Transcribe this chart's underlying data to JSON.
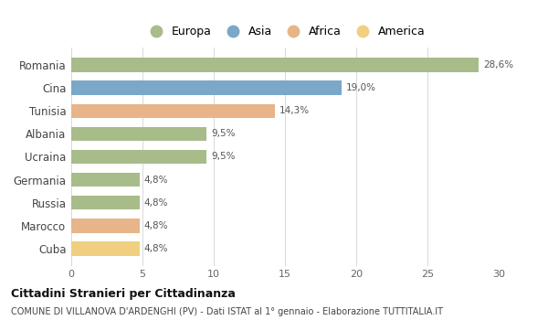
{
  "countries": [
    "Romania",
    "Cina",
    "Tunisia",
    "Albania",
    "Ucraina",
    "Germania",
    "Russia",
    "Marocco",
    "Cuba"
  ],
  "values": [
    28.6,
    19.0,
    14.3,
    9.5,
    9.5,
    4.8,
    4.8,
    4.8,
    4.8
  ],
  "labels": [
    "28,6%",
    "19,0%",
    "14,3%",
    "9,5%",
    "9,5%",
    "4,8%",
    "4,8%",
    "4,8%",
    "4,8%"
  ],
  "colors": [
    "#a8bc8a",
    "#7ba7c9",
    "#e8b48a",
    "#a8bc8a",
    "#a8bc8a",
    "#a8bc8a",
    "#a8bc8a",
    "#e8b48a",
    "#f0d080"
  ],
  "legend_labels": [
    "Europa",
    "Asia",
    "Africa",
    "America"
  ],
  "legend_colors": [
    "#a8bc8a",
    "#7ba7c9",
    "#e8b48a",
    "#f0d080"
  ],
  "xlim": [
    0,
    30
  ],
  "xticks": [
    0,
    5,
    10,
    15,
    20,
    25,
    30
  ],
  "title": "Cittadini Stranieri per Cittadinanza",
  "subtitle": "COMUNE DI VILLANOVA D'ARDENGHI (PV) - Dati ISTAT al 1° gennaio - Elaborazione TUTTITALIA.IT",
  "background_color": "#ffffff",
  "grid_color": "#d8d8d8"
}
